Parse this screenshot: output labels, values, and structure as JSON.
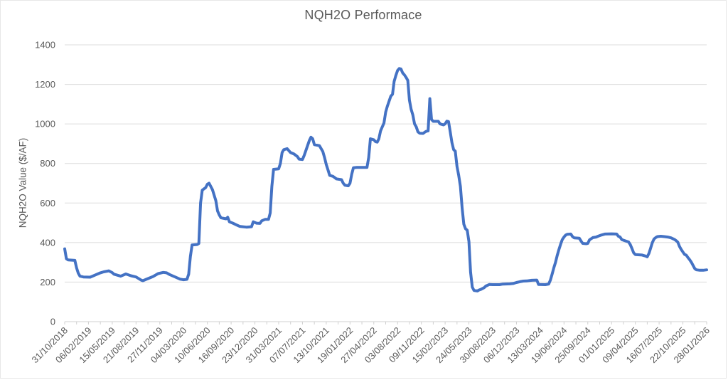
{
  "chart_data": {
    "type": "line",
    "title": "NQH2O Performace",
    "xlabel": "",
    "ylabel": "NQH2O Value ($/AF)",
    "ylim": [
      0,
      1400
    ],
    "y_ticks": [
      0,
      200,
      400,
      600,
      800,
      1000,
      1200,
      1400
    ],
    "grid": "horizontal",
    "legend": "none",
    "x_tick_labels": [
      "31/10/2018",
      "06/02/2019",
      "15/05/2019",
      "21/08/2019",
      "27/11/2019",
      "04/03/2020",
      "10/06/2020",
      "16/09/2020",
      "23/12/2020",
      "31/03/2021",
      "07/07/2021",
      "13/10/2021",
      "19/01/2022",
      "27/04/2022",
      "03/08/2022",
      "09/11/2022",
      "15/02/2023",
      "24/05/2023",
      "30/08/2023",
      "06/12/2023",
      "13/03/2024",
      "19/06/2024",
      "25/09/2024",
      "01/01/2025",
      "09/04/2025",
      "16/07/2025",
      "22/10/2025",
      "28/01/2026"
    ],
    "x_tick_label_interval_weeks": 14,
    "x_minor_tick_interval_weeks": 7,
    "x_total_weeks": 378,
    "colors": {
      "line": "#4472C4",
      "gridline": "#dcdcdc",
      "axis_line": "#d0d0d0",
      "text": "#595959"
    },
    "series": [
      {
        "name": "NQH2O Value",
        "color": "#4472C4",
        "line_width": 4,
        "points_week_value": [
          [
            0,
            368
          ],
          [
            1,
            318
          ],
          [
            2,
            312
          ],
          [
            6,
            310
          ],
          [
            7,
            272
          ],
          [
            8,
            245
          ],
          [
            9,
            230
          ],
          [
            11,
            226
          ],
          [
            15,
            225
          ],
          [
            18,
            236
          ],
          [
            21,
            247
          ],
          [
            23,
            252
          ],
          [
            26,
            257
          ],
          [
            28,
            248
          ],
          [
            29,
            240
          ],
          [
            33,
            230
          ],
          [
            36,
            241
          ],
          [
            39,
            232
          ],
          [
            42,
            226
          ],
          [
            45,
            210
          ],
          [
            46,
            207
          ],
          [
            48,
            214
          ],
          [
            52,
            228
          ],
          [
            55,
            243
          ],
          [
            58,
            249
          ],
          [
            60,
            247
          ],
          [
            62,
            237
          ],
          [
            65,
            226
          ],
          [
            68,
            215
          ],
          [
            70,
            212
          ],
          [
            72,
            214
          ],
          [
            73,
            240
          ],
          [
            74,
            330
          ],
          [
            75,
            388
          ],
          [
            78,
            390
          ],
          [
            79,
            395
          ],
          [
            80,
            600
          ],
          [
            81,
            665
          ],
          [
            83,
            678
          ],
          [
            84,
            695
          ],
          [
            85,
            700
          ],
          [
            87,
            668
          ],
          [
            88,
            640
          ],
          [
            89,
            612
          ],
          [
            90,
            560
          ],
          [
            91,
            540
          ],
          [
            92,
            525
          ],
          [
            95,
            520
          ],
          [
            96,
            528
          ],
          [
            97,
            505
          ],
          [
            99,
            498
          ],
          [
            101,
            490
          ],
          [
            103,
            482
          ],
          [
            107,
            478
          ],
          [
            110,
            480
          ],
          [
            111,
            505
          ],
          [
            113,
            498
          ],
          [
            115,
            497
          ],
          [
            116,
            510
          ],
          [
            118,
            517
          ],
          [
            120,
            517
          ],
          [
            121,
            550
          ],
          [
            122,
            684
          ],
          [
            123,
            770
          ],
          [
            126,
            773
          ],
          [
            127,
            800
          ],
          [
            128,
            855
          ],
          [
            129,
            870
          ],
          [
            131,
            875
          ],
          [
            133,
            855
          ],
          [
            135,
            848
          ],
          [
            137,
            835
          ],
          [
            138,
            822
          ],
          [
            140,
            820
          ],
          [
            141,
            840
          ],
          [
            142,
            865
          ],
          [
            143,
            890
          ],
          [
            144,
            915
          ],
          [
            145,
            933
          ],
          [
            146,
            925
          ],
          [
            147,
            895
          ],
          [
            150,
            890
          ],
          [
            152,
            860
          ],
          [
            153,
            830
          ],
          [
            154,
            795
          ],
          [
            155,
            768
          ],
          [
            156,
            740
          ],
          [
            158,
            735
          ],
          [
            160,
            722
          ],
          [
            163,
            718
          ],
          [
            164,
            700
          ],
          [
            165,
            690
          ],
          [
            167,
            687
          ],
          [
            168,
            700
          ],
          [
            169,
            745
          ],
          [
            170,
            778
          ],
          [
            172,
            780
          ],
          [
            178,
            780
          ],
          [
            179,
            830
          ],
          [
            180,
            925
          ],
          [
            182,
            920
          ],
          [
            183,
            910
          ],
          [
            184,
            908
          ],
          [
            185,
            925
          ],
          [
            186,
            965
          ],
          [
            187,
            985
          ],
          [
            188,
            1005
          ],
          [
            189,
            1060
          ],
          [
            190,
            1090
          ],
          [
            192,
            1140
          ],
          [
            193,
            1150
          ],
          [
            194,
            1215
          ],
          [
            195,
            1245
          ],
          [
            196,
            1270
          ],
          [
            197,
            1280
          ],
          [
            198,
            1278
          ],
          [
            199,
            1258
          ],
          [
            200,
            1248
          ],
          [
            201,
            1235
          ],
          [
            202,
            1220
          ],
          [
            203,
            1120
          ],
          [
            204,
            1074
          ],
          [
            205,
            1045
          ],
          [
            206,
            1000
          ],
          [
            207,
            985
          ],
          [
            208,
            960
          ],
          [
            209,
            953
          ],
          [
            211,
            952
          ],
          [
            212,
            958
          ],
          [
            213,
            963
          ],
          [
            214,
            965
          ],
          [
            215,
            1128
          ],
          [
            216,
            1022
          ],
          [
            217,
            1013
          ],
          [
            220,
            1013
          ],
          [
            221,
            1000
          ],
          [
            223,
            995
          ],
          [
            224,
            1000
          ],
          [
            225,
            1014
          ],
          [
            226,
            1012
          ],
          [
            227,
            960
          ],
          [
            228,
            905
          ],
          [
            229,
            870
          ],
          [
            230,
            862
          ],
          [
            231,
            785
          ],
          [
            232,
            740
          ],
          [
            233,
            684
          ],
          [
            234,
            576
          ],
          [
            235,
            493
          ],
          [
            236,
            470
          ],
          [
            237,
            462
          ],
          [
            238,
            405
          ],
          [
            239,
            250
          ],
          [
            240,
            175
          ],
          [
            241,
            158
          ],
          [
            243,
            155
          ],
          [
            244,
            160
          ],
          [
            245,
            163
          ],
          [
            247,
            172
          ],
          [
            248,
            180
          ],
          [
            250,
            188
          ],
          [
            252,
            187
          ],
          [
            256,
            187
          ],
          [
            258,
            190
          ],
          [
            262,
            191
          ],
          [
            264,
            193
          ],
          [
            266,
            198
          ],
          [
            268,
            202
          ],
          [
            270,
            205
          ],
          [
            272,
            206
          ],
          [
            275,
            209
          ],
          [
            278,
            210
          ],
          [
            279,
            188
          ],
          [
            283,
            187
          ],
          [
            285,
            190
          ],
          [
            286,
            210
          ],
          [
            287,
            240
          ],
          [
            288,
            272
          ],
          [
            289,
            300
          ],
          [
            290,
            335
          ],
          [
            291,
            365
          ],
          [
            292,
            392
          ],
          [
            293,
            415
          ],
          [
            294,
            428
          ],
          [
            295,
            438
          ],
          [
            296,
            442
          ],
          [
            298,
            443
          ],
          [
            299,
            430
          ],
          [
            300,
            424
          ],
          [
            303,
            422
          ],
          [
            304,
            408
          ],
          [
            305,
            396
          ],
          [
            307,
            394
          ],
          [
            308,
            396
          ],
          [
            309,
            414
          ],
          [
            311,
            425
          ],
          [
            313,
            428
          ],
          [
            314,
            432
          ],
          [
            316,
            438
          ],
          [
            318,
            443
          ],
          [
            322,
            444
          ],
          [
            325,
            443
          ],
          [
            326,
            432
          ],
          [
            327,
            428
          ],
          [
            328,
            415
          ],
          [
            330,
            409
          ],
          [
            332,
            403
          ],
          [
            333,
            390
          ],
          [
            334,
            370
          ],
          [
            335,
            348
          ],
          [
            336,
            339
          ],
          [
            340,
            337
          ],
          [
            342,
            332
          ],
          [
            343,
            328
          ],
          [
            344,
            345
          ],
          [
            345,
            372
          ],
          [
            346,
            400
          ],
          [
            347,
            418
          ],
          [
            348,
            425
          ],
          [
            349,
            430
          ],
          [
            351,
            432
          ],
          [
            353,
            430
          ],
          [
            355,
            428
          ],
          [
            357,
            424
          ],
          [
            358,
            420
          ],
          [
            359,
            416
          ],
          [
            360,
            410
          ],
          [
            361,
            402
          ],
          [
            362,
            380
          ],
          [
            363,
            365
          ],
          [
            364,
            352
          ],
          [
            365,
            340
          ],
          [
            366,
            336
          ],
          [
            367,
            324
          ],
          [
            368,
            313
          ],
          [
            369,
            300
          ],
          [
            370,
            284
          ],
          [
            371,
            268
          ],
          [
            372,
            262
          ],
          [
            374,
            260
          ],
          [
            376,
            260
          ],
          [
            378,
            262
          ]
        ]
      }
    ]
  }
}
